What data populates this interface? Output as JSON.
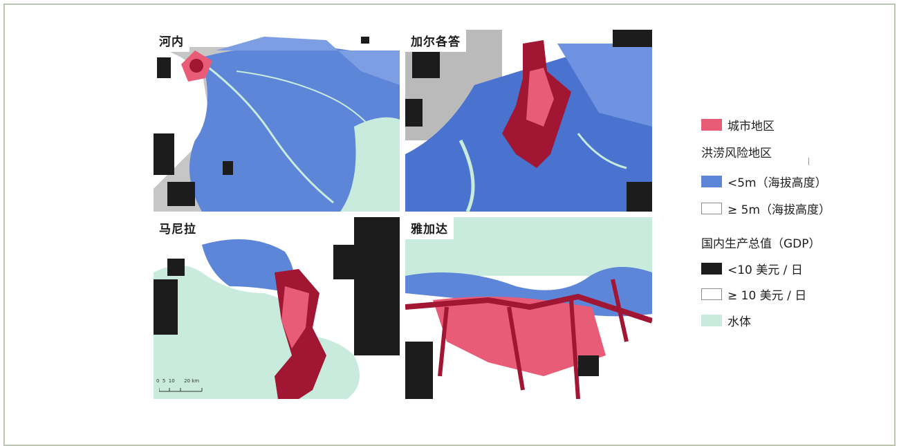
{
  "maps": [
    {
      "label": "河内"
    },
    {
      "label": "加尔各答"
    },
    {
      "label": "马尼拉"
    },
    {
      "label": "雅加达"
    }
  ],
  "scale_bar": {
    "ticks": "0  5  10      20 km"
  },
  "legend": {
    "urban": "城市地区",
    "flood_heading": "洪涝风险地区",
    "below5": "<5m（海拔高度）",
    "above5": "≥ 5m（海拔高度）",
    "gdp_heading": "国内生产总值（GDP）",
    "under10": "<10 美元 / 日",
    "over10": "≥ 10 美元 / 日",
    "water": "水体"
  },
  "colors": {
    "urban": "#e95c78",
    "urban_dark": "#a01633",
    "flood": "#5d86d8",
    "poor": "#1c1c1c",
    "water": "#c9ebdd",
    "frame": "#b9c6b0"
  }
}
